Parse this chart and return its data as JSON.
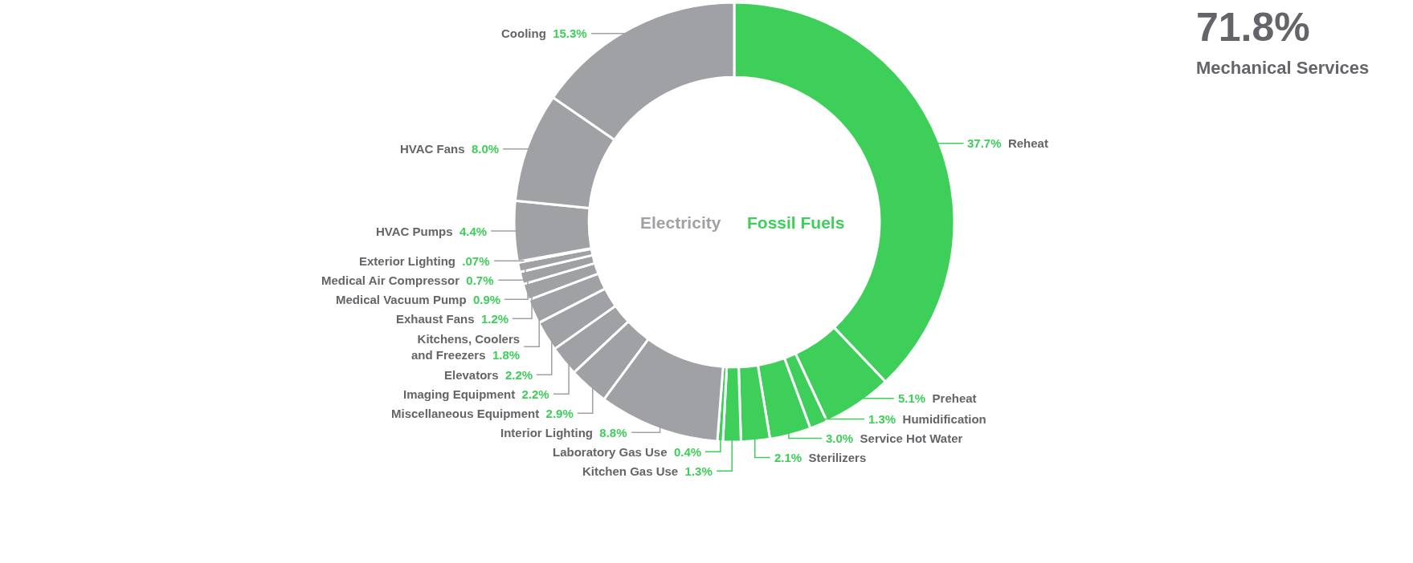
{
  "chart_data": {
    "type": "donut",
    "categories": [
      "Reheat",
      "Preheat",
      "Humidification",
      "Service Hot Water",
      "Sterilizers",
      "Kitchen Gas Use",
      "Laboratory Gas Use",
      "Interior Lighting",
      "Miscellaneous Equipment",
      "Imaging Equipment",
      "Elevators",
      "Kitchens, Coolers\nand Freezers",
      "Exhaust Fans",
      "Medical Vacuum Pump",
      "Medical Air Compressor",
      "Exterior Lighting",
      "HVAC Pumps",
      "HVAC Fans",
      "Cooling"
    ],
    "values": [
      37.7,
      5.1,
      1.3,
      3.0,
      2.1,
      1.3,
      0.4,
      8.8,
      2.9,
      2.2,
      2.2,
      1.8,
      1.2,
      0.9,
      0.7,
      0.07,
      4.4,
      8.0,
      15.3
    ],
    "value_labels": [
      "37.7%",
      "5.1%",
      "1.3%",
      "3.0%",
      "2.1%",
      "1.3%",
      "0.4%",
      "8.8%",
      "2.9%",
      "2.2%",
      "2.2%",
      "1.8%",
      "1.2%",
      "0.9%",
      "0.7%",
      ".07%",
      "4.4%",
      "8.0%",
      "15.3%"
    ],
    "colors": [
      "#3ecf5a",
      "#3ecf5a",
      "#3ecf5a",
      "#3ecf5a",
      "#3ecf5a",
      "#3ecf5a",
      "#3ecf5a",
      "#a0a1a4",
      "#a0a1a4",
      "#a0a1a4",
      "#a0a1a4",
      "#a0a1a4",
      "#a0a1a4",
      "#a0a1a4",
      "#a0a1a4",
      "#a0a1a4",
      "#a0a1a4",
      "#a0a1a4",
      "#a0a1a4"
    ],
    "annotations": [
      "Electricity",
      "Fossil Fuels",
      "71.8%",
      "Mechanical Services"
    ],
    "legend": false
  }
}
